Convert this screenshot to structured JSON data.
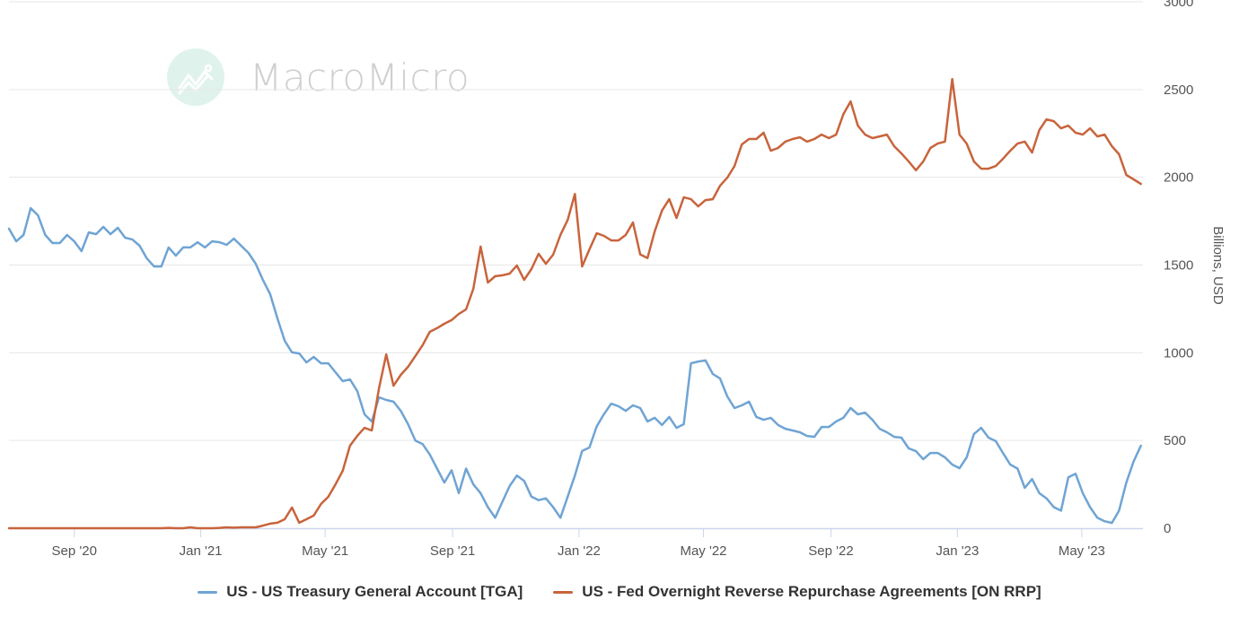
{
  "watermark": {
    "text": "MacroMicro",
    "logo_icon": "chart-trend-icon"
  },
  "chart_data": {
    "type": "line",
    "title": "",
    "xlabel": "",
    "ylabel": "Billions, USD",
    "ylim": [
      0,
      3000
    ],
    "y_ticks": [
      "0",
      "500",
      "1000",
      "1500",
      "2000",
      "2500",
      "3000"
    ],
    "y_tick_values": [
      0,
      500,
      1000,
      1500,
      2000,
      2500,
      3000
    ],
    "y_axis_position": "right",
    "grid": true,
    "x_range": [
      "2020-06-30",
      "2023-06-29"
    ],
    "x_ticks": [
      {
        "label": "Sep '20",
        "date": "2020-09-01"
      },
      {
        "label": "Jan '21",
        "date": "2021-01-01"
      },
      {
        "label": "May '21",
        "date": "2021-05-01"
      },
      {
        "label": "Sep '21",
        "date": "2021-09-01"
      },
      {
        "label": "Jan '22",
        "date": "2022-01-01"
      },
      {
        "label": "May '22",
        "date": "2022-05-01"
      },
      {
        "label": "Sep '22",
        "date": "2022-09-01"
      },
      {
        "label": "Jan '23",
        "date": "2023-01-01"
      },
      {
        "label": "May '23",
        "date": "2023-05-01"
      }
    ],
    "x_start": "2020-06-30",
    "x_step_days": 7,
    "legend_position": "bottom",
    "series": [
      {
        "name": "US - US Treasury General Account [TGA]",
        "color": "#6fa4d4",
        "values": [
          1707,
          1635,
          1671,
          1824,
          1783,
          1671,
          1625,
          1625,
          1671,
          1635,
          1579,
          1686,
          1676,
          1717,
          1676,
          1712,
          1656,
          1645,
          1610,
          1538,
          1492,
          1492,
          1600,
          1553,
          1600,
          1600,
          1630,
          1600,
          1635,
          1630,
          1615,
          1650,
          1610,
          1569,
          1507,
          1415,
          1334,
          1196,
          1068,
          1002,
          996,
          945,
          976,
          940,
          940,
          889,
          838,
          848,
          782,
          649,
          608,
          746,
          731,
          721,
          669,
          593,
          500,
          480,
          420,
          340,
          260,
          330,
          200,
          340,
          250,
          200,
          120,
          60,
          150,
          240,
          300,
          270,
          180,
          160,
          170,
          120,
          60,
          180,
          300,
          440,
          460,
          580,
          650,
          710,
          695,
          669,
          700,
          685,
          608,
          629,
          588,
          634,
          572,
          593,
          940,
          950,
          956,
          879,
          853,
          751,
          685,
          700,
          721,
          634,
          618,
          629,
          588,
          567,
          557,
          547,
          526,
          521,
          577,
          577,
          608,
          629,
          685,
          649,
          659,
          618,
          567,
          547,
          521,
          516,
          455,
          439,
          393,
          429,
          429,
          404,
          363,
          342,
          404,
          537,
          572,
          516,
          496,
          429,
          363,
          340,
          230,
          280,
          200,
          170,
          120,
          100,
          290,
          310,
          200,
          120,
          60,
          40,
          30,
          100,
          260,
          380,
          470
        ]
      },
      {
        "name": "US - Fed Overnight Reverse Repurchase Agreements [ON RRP]",
        "color": "#c8643c",
        "values": [
          0,
          0,
          0,
          0,
          0,
          0,
          0,
          0,
          0,
          0,
          0,
          0,
          0,
          0,
          0,
          0,
          0,
          0,
          0,
          0,
          0,
          0,
          2,
          0,
          0,
          5,
          0,
          0,
          0,
          2,
          5,
          3,
          5,
          5,
          5,
          15,
          26,
          31,
          51,
          118,
          31,
          51,
          72,
          138,
          179,
          250,
          327,
          470,
          526,
          572,
          557,
          797,
          991,
          812,
          874,
          920,
          981,
          1042,
          1119,
          1140,
          1165,
          1186,
          1221,
          1247,
          1364,
          1605,
          1400,
          1436,
          1441,
          1451,
          1497,
          1415,
          1477,
          1564,
          1507,
          1559,
          1671,
          1757,
          1905,
          1492,
          1589,
          1681,
          1666,
          1640,
          1640,
          1671,
          1742,
          1560,
          1540,
          1691,
          1810,
          1875,
          1768,
          1886,
          1875,
          1834,
          1870,
          1875,
          1952,
          1998,
          2064,
          2187,
          2218,
          2218,
          2254,
          2151,
          2167,
          2203,
          2218,
          2228,
          2203,
          2218,
          2243,
          2223,
          2243,
          2360,
          2432,
          2294,
          2243,
          2223,
          2233,
          2243,
          2177,
          2136,
          2090,
          2040,
          2090,
          2167,
          2192,
          2203,
          2560,
          2243,
          2192,
          2090,
          2049,
          2049,
          2064,
          2105,
          2151,
          2192,
          2203,
          2141,
          2269,
          2330,
          2320,
          2279,
          2294,
          2254,
          2243,
          2279,
          2233,
          2243,
          2177,
          2131,
          2013,
          1988,
          1962
        ]
      }
    ]
  }
}
